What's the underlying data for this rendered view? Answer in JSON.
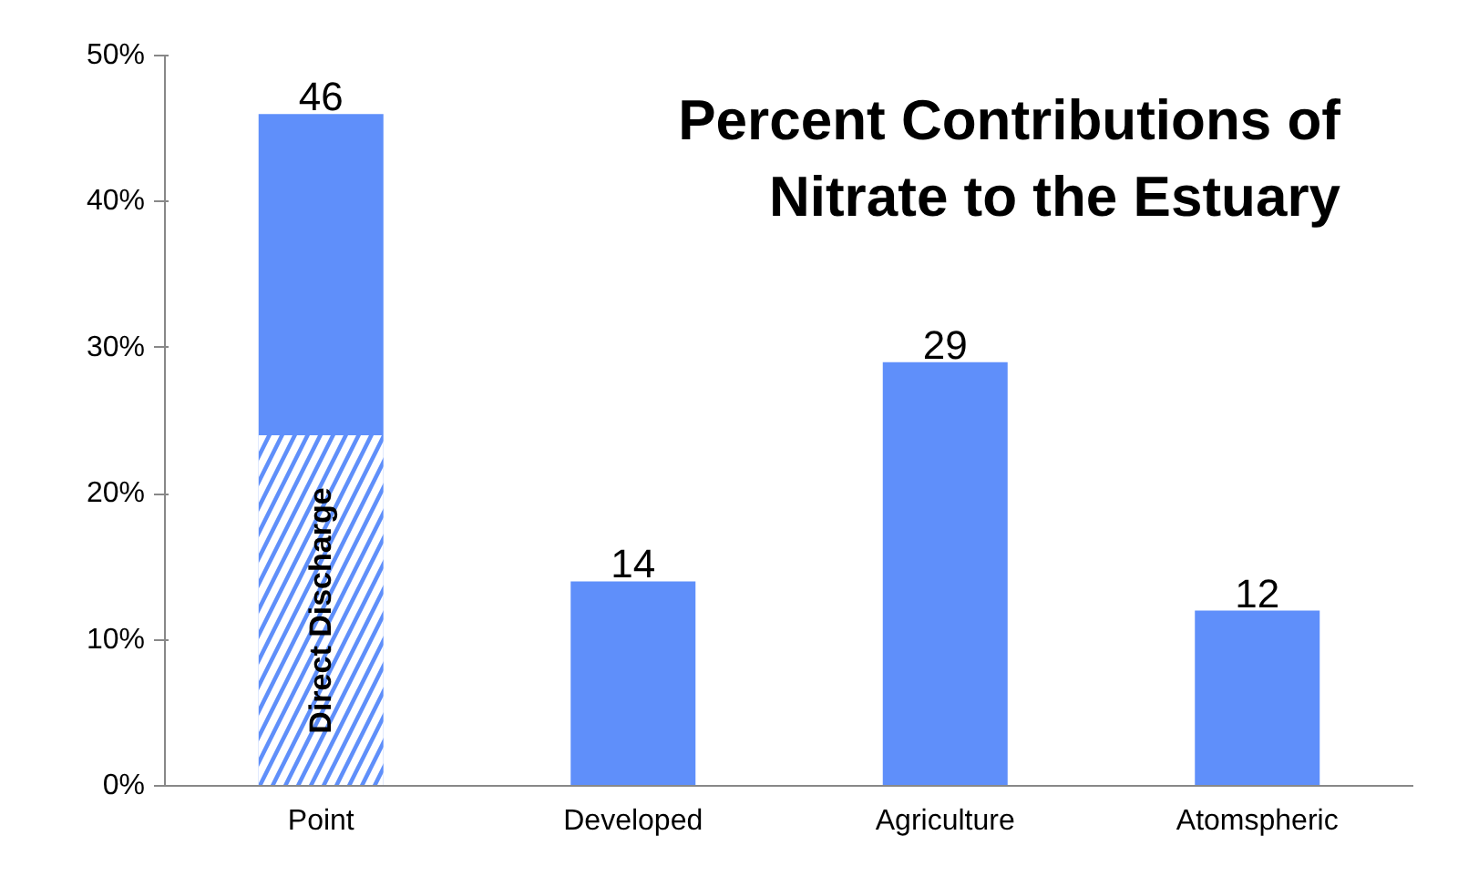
{
  "chart_data": {
    "type": "bar",
    "title": "Percent Contributions of\nNitrate to the Estuary",
    "categories": [
      "Point",
      "Developed",
      "Agriculture",
      "Atomspheric"
    ],
    "stacked": true,
    "series": [
      {
        "name": "Direct Discharge",
        "color": "#5f8ffa",
        "values": [
          24,
          null,
          null,
          null
        ]
      },
      {
        "color": "#5f8ffa",
        "values": [
          22,
          14,
          29,
          12
        ]
      }
    ],
    "totals": [
      "46",
      "14",
      "29",
      "12"
    ],
    "ylim": [
      0,
      50
    ],
    "yticks": [
      {
        "value": 0,
        "label": "0%"
      },
      {
        "value": 10,
        "label": "10%"
      },
      {
        "value": 20,
        "label": "20%"
      },
      {
        "value": 30,
        "label": "30%"
      },
      {
        "value": 40,
        "label": "40%"
      },
      {
        "value": 50,
        "label": "50%"
      }
    ],
    "grid": false
  }
}
